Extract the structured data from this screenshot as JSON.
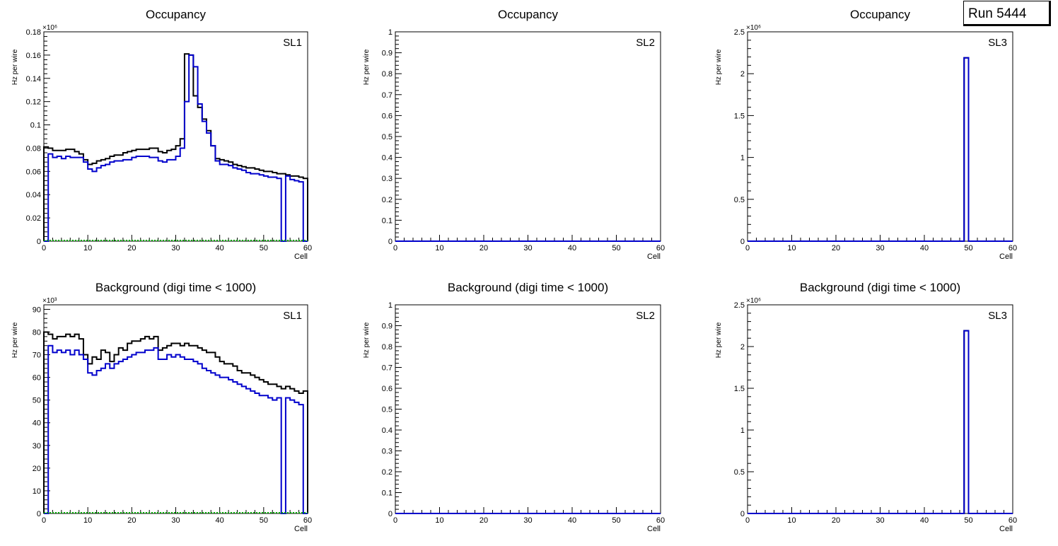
{
  "run_label": "Run 5444",
  "colors": {
    "total": "#000000",
    "signal": "#0000cc",
    "zero": "#00aa00"
  },
  "chart_data": [
    {
      "type": "step",
      "title": "Occupancy",
      "tag": "SL1",
      "xlabel": "Cell",
      "ylabel": "Hz per wire",
      "exponent": "×10⁶",
      "xlim": [
        0,
        60
      ],
      "ylim": [
        0,
        0.18
      ],
      "xticks": [
        "0",
        "10",
        "20",
        "30",
        "40",
        "50",
        "60"
      ],
      "yticks": [
        "0",
        "0.02",
        "0.04",
        "0.06",
        "0.08",
        "0.1",
        "0.12",
        "0.14",
        "0.16",
        "0.18"
      ],
      "yvals": [
        0,
        0.02,
        0.04,
        0.06,
        0.08,
        0.1,
        0.12,
        0.14,
        0.16,
        0.18
      ],
      "series": [
        {
          "name": "total",
          "color": "#000000",
          "values": [
            0.081,
            0.08,
            0.078,
            0.078,
            0.078,
            0.079,
            0.079,
            0.077,
            0.075,
            0.07,
            0.066,
            0.067,
            0.069,
            0.07,
            0.071,
            0.073,
            0.074,
            0.074,
            0.076,
            0.077,
            0.078,
            0.079,
            0.079,
            0.079,
            0.08,
            0.08,
            0.077,
            0.076,
            0.078,
            0.079,
            0.082,
            0.088,
            0.161,
            0.16,
            0.125,
            0.115,
            0.105,
            0.095,
            0.082,
            0.071,
            0.07,
            0.069,
            0.068,
            0.066,
            0.065,
            0.064,
            0.063,
            0.063,
            0.062,
            0.061,
            0.06,
            0.06,
            0.059,
            0.058,
            0.058,
            0.057,
            0.056,
            0.056,
            0.055,
            0.054
          ]
        },
        {
          "name": "signal",
          "color": "#0000cc",
          "values": [
            0,
            0.075,
            0.072,
            0.073,
            0.071,
            0.073,
            0.072,
            0.072,
            0.072,
            0.068,
            0.062,
            0.06,
            0.063,
            0.065,
            0.066,
            0.068,
            0.069,
            0.069,
            0.07,
            0.07,
            0.072,
            0.073,
            0.073,
            0.073,
            0.072,
            0.072,
            0.069,
            0.068,
            0.07,
            0.07,
            0.073,
            0.08,
            0.12,
            0.16,
            0.15,
            0.118,
            0.103,
            0.093,
            0.082,
            0.069,
            0.066,
            0.066,
            0.065,
            0.063,
            0.062,
            0.061,
            0.059,
            0.058,
            0.058,
            0.057,
            0.056,
            0.055,
            0.055,
            0.054,
            0,
            0.056,
            0.053,
            0.052,
            0.051,
            0
          ]
        }
      ]
    },
    {
      "type": "step",
      "title": "Occupancy",
      "tag": "SL2",
      "xlabel": "Cell",
      "ylabel": "Hz per wire",
      "exponent": "",
      "xlim": [
        0,
        60
      ],
      "ylim": [
        0,
        1
      ],
      "xticks": [
        "0",
        "10",
        "20",
        "30",
        "40",
        "50",
        "60"
      ],
      "yticks": [
        "0",
        "0.1",
        "0.2",
        "0.3",
        "0.4",
        "0.5",
        "0.6",
        "0.7",
        "0.8",
        "0.9",
        "1"
      ],
      "yvals": [
        0,
        0.1,
        0.2,
        0.3,
        0.4,
        0.5,
        0.6,
        0.7,
        0.8,
        0.9,
        1
      ],
      "series": [
        {
          "name": "signal",
          "color": "#0000cc",
          "values": [
            0,
            0,
            0,
            0,
            0,
            0,
            0,
            0,
            0,
            0,
            0,
            0,
            0,
            0,
            0,
            0,
            0,
            0,
            0,
            0,
            0,
            0,
            0,
            0,
            0,
            0,
            0,
            0,
            0,
            0,
            0,
            0,
            0,
            0,
            0,
            0,
            0,
            0,
            0,
            0,
            0,
            0,
            0,
            0,
            0,
            0,
            0,
            0,
            0,
            0,
            0,
            0,
            0,
            0,
            0,
            0,
            0,
            0,
            0,
            0
          ]
        }
      ]
    },
    {
      "type": "step",
      "title": "Occupancy",
      "tag": "SL3",
      "xlabel": "Cell",
      "ylabel": "Hz per wire",
      "exponent": "×10⁶",
      "xlim": [
        0,
        60
      ],
      "ylim": [
        0,
        2.5
      ],
      "xticks": [
        "0",
        "10",
        "20",
        "30",
        "40",
        "50",
        "60"
      ],
      "yticks": [
        "0",
        "0.5",
        "1",
        "1.5",
        "2",
        "2.5"
      ],
      "yvals": [
        0,
        0.5,
        1,
        1.5,
        2,
        2.5
      ],
      "series": [
        {
          "name": "total",
          "color": "#000000",
          "values": [
            0,
            0,
            0,
            0,
            0,
            0,
            0,
            0,
            0,
            0,
            0,
            0,
            0,
            0,
            0,
            0,
            0,
            0,
            0,
            0,
            0,
            0,
            0,
            0,
            0,
            0,
            0,
            0,
            0,
            0,
            0,
            0,
            0,
            0,
            0,
            0,
            0,
            0,
            0,
            0,
            0,
            0,
            0,
            0,
            0,
            0,
            0,
            0,
            0,
            2.19,
            0,
            0,
            0,
            0,
            0,
            0,
            0,
            0,
            0,
            0
          ]
        },
        {
          "name": "signal",
          "color": "#0000cc",
          "values": [
            0,
            0,
            0,
            0,
            0,
            0,
            0,
            0,
            0,
            0,
            0,
            0,
            0,
            0,
            0,
            0,
            0,
            0,
            0,
            0,
            0,
            0,
            0,
            0,
            0,
            0,
            0,
            0,
            0,
            0,
            0,
            0,
            0,
            0,
            0,
            0,
            0,
            0,
            0,
            0,
            0,
            0,
            0,
            0,
            0,
            0,
            0,
            0,
            0,
            2.19,
            0,
            0,
            0,
            0,
            0,
            0,
            0,
            0,
            0,
            0
          ]
        }
      ]
    },
    {
      "type": "step",
      "title": "Background (digi time < 1000)",
      "tag": "SL1",
      "xlabel": "Cell",
      "ylabel": "Hz per wire",
      "exponent": "×10³",
      "xlim": [
        0,
        60
      ],
      "ylim": [
        0,
        92
      ],
      "xticks": [
        "0",
        "10",
        "20",
        "30",
        "40",
        "50",
        "60"
      ],
      "yticks": [
        "0",
        "10",
        "20",
        "30",
        "40",
        "50",
        "60",
        "70",
        "80",
        "90"
      ],
      "yvals": [
        0,
        10,
        20,
        30,
        40,
        50,
        60,
        70,
        80,
        90
      ],
      "series": [
        {
          "name": "total",
          "color": "#000000",
          "values": [
            80,
            79,
            77,
            78,
            78,
            79,
            78,
            79,
            77,
            70,
            66,
            69,
            68,
            72,
            71,
            67,
            70,
            73,
            72,
            75,
            76,
            76,
            77,
            78,
            77,
            78,
            72,
            73,
            74,
            75,
            75,
            74,
            75,
            74,
            74,
            73,
            72,
            71,
            71,
            69,
            67,
            66,
            66,
            65,
            63,
            62,
            62,
            61,
            60,
            59,
            58,
            57,
            57,
            56,
            55,
            56,
            55,
            54,
            53,
            54
          ]
        },
        {
          "name": "signal",
          "color": "#0000cc",
          "values": [
            0,
            74,
            71,
            72,
            71,
            72,
            70,
            72,
            70,
            68,
            62,
            61,
            63,
            64,
            66,
            64,
            66,
            67,
            68,
            69,
            70,
            71,
            71,
            72,
            72,
            73,
            68,
            68,
            70,
            69,
            70,
            69,
            68,
            68,
            67,
            66,
            64,
            63,
            62,
            61,
            60,
            60,
            59,
            58,
            57,
            56,
            55,
            54,
            53,
            52,
            52,
            51,
            50,
            51,
            0,
            51,
            50,
            49,
            48,
            0
          ]
        }
      ]
    },
    {
      "type": "step",
      "title": "Background (digi time < 1000)",
      "tag": "SL2",
      "xlabel": "Cell",
      "ylabel": "Hz per wire",
      "exponent": "",
      "xlim": [
        0,
        60
      ],
      "ylim": [
        0,
        1
      ],
      "xticks": [
        "0",
        "10",
        "20",
        "30",
        "40",
        "50",
        "60"
      ],
      "yticks": [
        "0",
        "0.1",
        "0.2",
        "0.3",
        "0.4",
        "0.5",
        "0.6",
        "0.7",
        "0.8",
        "0.9",
        "1"
      ],
      "yvals": [
        0,
        0.1,
        0.2,
        0.3,
        0.4,
        0.5,
        0.6,
        0.7,
        0.8,
        0.9,
        1
      ],
      "series": [
        {
          "name": "signal",
          "color": "#0000cc",
          "values": [
            0,
            0,
            0,
            0,
            0,
            0,
            0,
            0,
            0,
            0,
            0,
            0,
            0,
            0,
            0,
            0,
            0,
            0,
            0,
            0,
            0,
            0,
            0,
            0,
            0,
            0,
            0,
            0,
            0,
            0,
            0,
            0,
            0,
            0,
            0,
            0,
            0,
            0,
            0,
            0,
            0,
            0,
            0,
            0,
            0,
            0,
            0,
            0,
            0,
            0,
            0,
            0,
            0,
            0,
            0,
            0,
            0,
            0,
            0,
            0
          ]
        }
      ]
    },
    {
      "type": "step",
      "title": "Background (digi time < 1000)",
      "tag": "SL3",
      "xlabel": "Cell",
      "ylabel": "Hz per wire",
      "exponent": "×10⁶",
      "xlim": [
        0,
        60
      ],
      "ylim": [
        0,
        2.5
      ],
      "xticks": [
        "0",
        "10",
        "20",
        "30",
        "40",
        "50",
        "60"
      ],
      "yticks": [
        "0",
        "0.5",
        "1",
        "1.5",
        "2",
        "2.5"
      ],
      "yvals": [
        0,
        0.5,
        1,
        1.5,
        2,
        2.5
      ],
      "series": [
        {
          "name": "total",
          "color": "#000000",
          "values": [
            0,
            0,
            0,
            0,
            0,
            0,
            0,
            0,
            0,
            0,
            0,
            0,
            0,
            0,
            0,
            0,
            0,
            0,
            0,
            0,
            0,
            0,
            0,
            0,
            0,
            0,
            0,
            0,
            0,
            0,
            0,
            0,
            0,
            0,
            0,
            0,
            0,
            0,
            0,
            0,
            0,
            0,
            0,
            0,
            0,
            0,
            0,
            0,
            0,
            2.19,
            0,
            0,
            0,
            0,
            0,
            0,
            0,
            0,
            0,
            0
          ]
        },
        {
          "name": "signal",
          "color": "#0000cc",
          "values": [
            0,
            0,
            0,
            0,
            0,
            0,
            0,
            0,
            0,
            0,
            0,
            0,
            0,
            0,
            0,
            0,
            0,
            0,
            0,
            0,
            0,
            0,
            0,
            0,
            0,
            0,
            0,
            0,
            0,
            0,
            0,
            0,
            0,
            0,
            0,
            0,
            0,
            0,
            0,
            0,
            0,
            0,
            0,
            0,
            0,
            0,
            0,
            0,
            0,
            2.19,
            0,
            0,
            0,
            0,
            0,
            0,
            0,
            0,
            0,
            0
          ]
        }
      ]
    }
  ]
}
